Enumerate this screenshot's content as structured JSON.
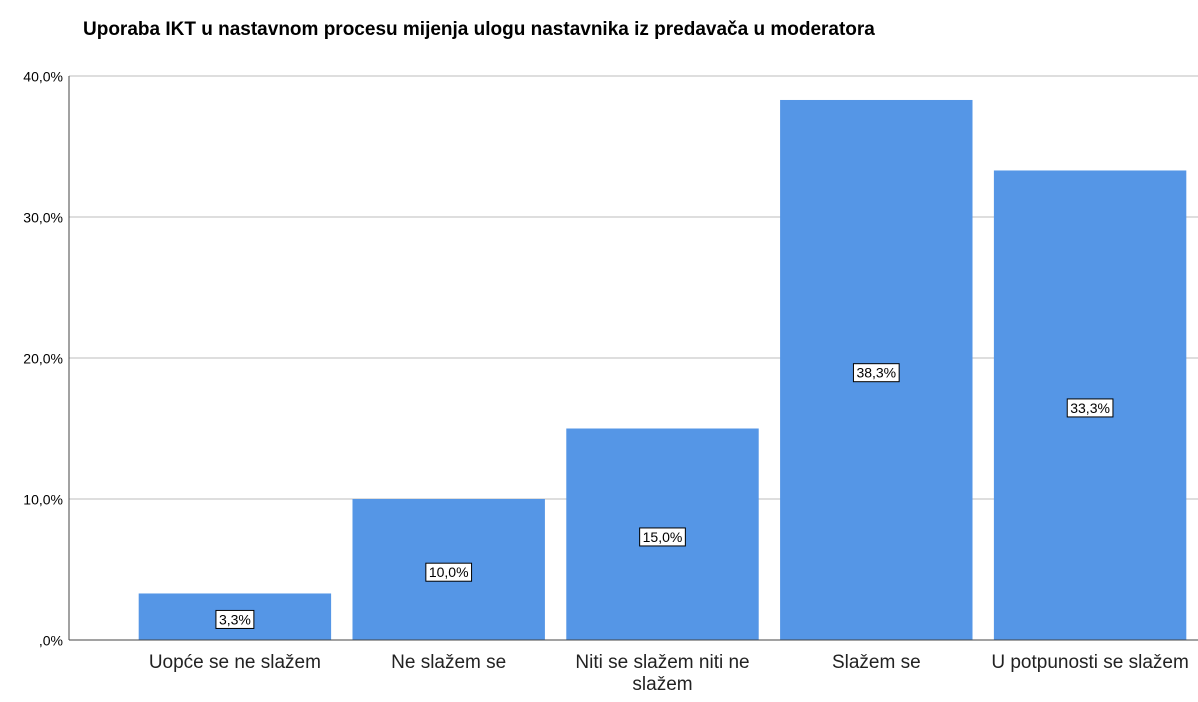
{
  "chart_data": {
    "type": "bar",
    "title": "Uporaba IKT u nastavnom procesu mijenja ulogu nastavnika iz predavača u moderatora",
    "categories": [
      "Uopće se ne slažem",
      "Ne slažem se",
      "Niti se slažem niti ne slažem",
      "Slažem se",
      "U potpunosti se slažem"
    ],
    "values": [
      3.3,
      10.0,
      15.0,
      38.3,
      33.3
    ],
    "value_labels": [
      "3,3%",
      "10,0%",
      "15,0%",
      "38,3%",
      "33,3%"
    ],
    "color": "#5596e6",
    "ylim": [
      0,
      40
    ],
    "yticks": [
      {
        "value": 0,
        "label": ",0%"
      },
      {
        "value": 10,
        "label": "10,0%"
      },
      {
        "value": 20,
        "label": "20,0%"
      },
      {
        "value": 30,
        "label": "30,0%"
      },
      {
        "value": 40,
        "label": "40,0%"
      }
    ],
    "grid": true
  }
}
